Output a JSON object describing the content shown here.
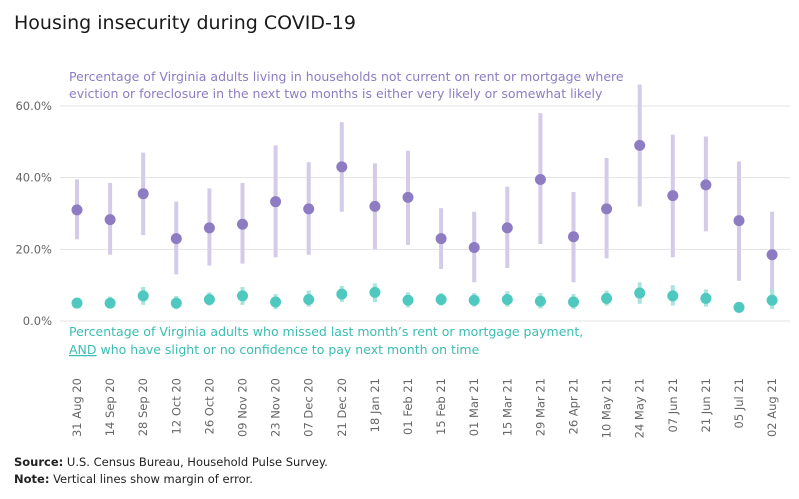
{
  "title": "Housing insecurity during COVID-19",
  "footnotes": {
    "source_label": "Source:",
    "source_text": " U.S. Census Bureau, Household Pulse Survey.",
    "note_label": "Note:",
    "note_text": " Vertical lines show margin of error."
  },
  "colors": {
    "series1": "#8e7cc3",
    "series1_range": "#d4cbe8",
    "series2": "#4fc9bf",
    "series2_range": "#a9e4de",
    "grid": "#e3e3e3",
    "axis_text": "#666666"
  },
  "chart_data": {
    "type": "scatter",
    "categories": [
      "31 Aug 20",
      "14 Sep 20",
      "28 Sep 20",
      "12 Oct 20",
      "26 Oct 20",
      "09 Nov 20",
      "23 Nov 20",
      "07 Dec 20",
      "21 Dec 20",
      "18 Jan 21",
      "01 Feb 21",
      "15 Feb 21",
      "01 Mar 21",
      "15 Mar 21",
      "29 Mar 21",
      "26 Apr 21",
      "10 May 21",
      "24 May 21",
      "07 Jun 21",
      "21 Jun 21",
      "05 Jul 21",
      "02 Aug 21"
    ],
    "ylim": [
      0,
      60
    ],
    "yticks": [
      0,
      20,
      40,
      60
    ],
    "ytick_labels": [
      "0.0%",
      "20.0%",
      "40.0%",
      "60.0%"
    ],
    "series": [
      {
        "annotation_line1": "Percentage of Virginia adults living in households not current on rent or mortgage where",
        "annotation_line2": "eviction or foreclosure in the next two months is either very likely or somewhat likely",
        "values": [
          31,
          28.3,
          35.5,
          23,
          26,
          27,
          33.3,
          31.3,
          43,
          32,
          34.5,
          23,
          20.5,
          26,
          39.5,
          23.5,
          31.3,
          49,
          35,
          38,
          28,
          18.5
        ],
        "lower": [
          22.8,
          18.5,
          24,
          13,
          15.5,
          16,
          17.8,
          18.5,
          30.5,
          20,
          21.2,
          14.5,
          10.8,
          14.8,
          21.5,
          10.8,
          17.5,
          32,
          17.8,
          25,
          11.2,
          6.5
        ],
        "upper": [
          39.5,
          38.5,
          47,
          33.3,
          37,
          38.5,
          49,
          44.3,
          55.5,
          44,
          47.5,
          31.5,
          30.5,
          37.5,
          58,
          36,
          45.5,
          66,
          52,
          51.5,
          44.5,
          30.5
        ]
      },
      {
        "annotation_line1": "Percentage of Virginia adults who missed last month’s rent or mortgage payment,",
        "annotation_line2_underlined": "AND",
        "annotation_line2_rest": " who have slight or no confidence to pay next month on time",
        "values": [
          5,
          5,
          7,
          5,
          6,
          7,
          5.3,
          6,
          7.5,
          8,
          5.8,
          6,
          5.8,
          6,
          5.5,
          5.3,
          6.3,
          7.8,
          7,
          6.3,
          3.8,
          5.8
        ],
        "lower": [
          3.5,
          3.8,
          4.5,
          3.3,
          4.3,
          4.5,
          3.3,
          4,
          5.3,
          5.3,
          3.8,
          4.3,
          4,
          4,
          3.5,
          3.3,
          4.3,
          4.8,
          4.3,
          4,
          2.3,
          3.3
        ],
        "upper": [
          6.5,
          6.8,
          9.5,
          7,
          8,
          9.5,
          7.5,
          8.5,
          9.8,
          10.5,
          8,
          7.8,
          7.8,
          8.3,
          7.8,
          7.5,
          8.5,
          10.8,
          10,
          8.8,
          5.3,
          8.8
        ]
      }
    ]
  }
}
